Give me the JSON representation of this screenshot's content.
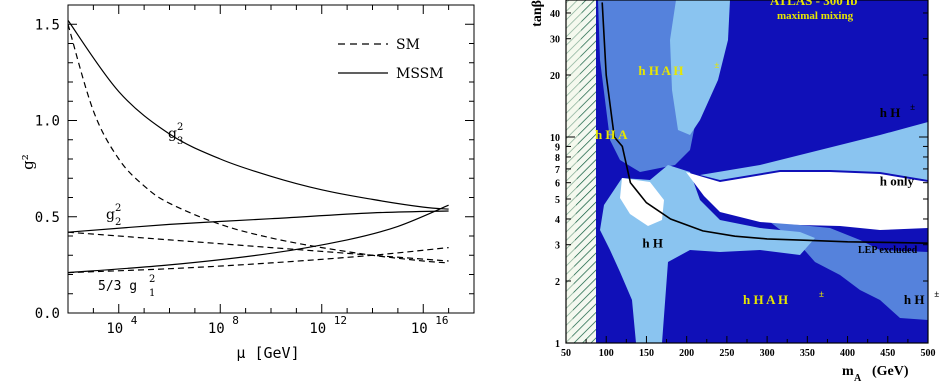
{
  "chart_data": [
    {
      "type": "line",
      "xlabel": "μ [GeV]",
      "ylabel": "g²",
      "x_scale": "log10",
      "xlim": [
        100,
        1e+18
      ],
      "ylim": [
        0.0,
        1.6
      ],
      "x_ticks": [
        "10",
        "10",
        "10",
        "10"
      ],
      "x_tick_exponents": [
        "4",
        "8",
        "12",
        "16"
      ],
      "y_ticks": [
        "0.0",
        "0.5",
        "1.0",
        "1.5"
      ],
      "legend": [
        {
          "label": "SM",
          "style": "dashed"
        },
        {
          "label": "MSSM",
          "style": "solid"
        }
      ],
      "curve_labels": {
        "g3": {
          "base": "g",
          "sup": "2",
          "sub": "3"
        },
        "g2": {
          "base": "g",
          "sup": "2",
          "sub": "2"
        },
        "g1": {
          "base": "5/3 g",
          "sup": "2",
          "sub": "1"
        }
      },
      "series": [
        {
          "name": "MSSM g3²",
          "style": "solid",
          "x": [
            2,
            4,
            6,
            8,
            10,
            12,
            14,
            16,
            17
          ],
          "y": [
            1.52,
            1.15,
            0.93,
            0.8,
            0.71,
            0.64,
            0.59,
            0.55,
            0.54
          ]
        },
        {
          "name": "SM g3²",
          "style": "dashed",
          "x": [
            2,
            3,
            4,
            5,
            6,
            8,
            10,
            12,
            14,
            16,
            17
          ],
          "y": [
            1.5,
            1.05,
            0.8,
            0.66,
            0.57,
            0.46,
            0.39,
            0.34,
            0.3,
            0.27,
            0.26
          ]
        },
        {
          "name": "MSSM g2²",
          "style": "solid",
          "x": [
            2,
            6,
            10,
            14,
            17
          ],
          "y": [
            0.42,
            0.46,
            0.49,
            0.52,
            0.53
          ]
        },
        {
          "name": "SM g2²",
          "style": "dashed",
          "x": [
            2,
            6,
            10,
            14,
            17
          ],
          "y": [
            0.42,
            0.38,
            0.34,
            0.3,
            0.27
          ]
        },
        {
          "name": "MSSM 5/3 g1²",
          "style": "solid",
          "x": [
            2,
            6,
            10,
            13,
            15,
            17
          ],
          "y": [
            0.21,
            0.25,
            0.31,
            0.38,
            0.45,
            0.56
          ]
        },
        {
          "name": "SM 5/3 g1²",
          "style": "dashed",
          "x": [
            2,
            6,
            10,
            14,
            17
          ],
          "y": [
            0.21,
            0.23,
            0.26,
            0.3,
            0.34
          ]
        }
      ]
    },
    {
      "type": "area",
      "xlabel": "m",
      "xlabel_sub": "A",
      "xlabel_unit": "(GeV)",
      "ylabel": "tanβ",
      "y_scale": "log",
      "xlim": [
        50,
        500
      ],
      "ylim": [
        1,
        45
      ],
      "x_ticks": [
        "50",
        "100",
        "150",
        "200",
        "250",
        "300",
        "350",
        "400",
        "450",
        "500"
      ],
      "y_ticks": [
        "1",
        "2",
        "3",
        "4",
        "5",
        "6",
        "7",
        "8",
        "9",
        "10",
        "20",
        "30",
        "40"
      ],
      "title": "ATLAS - 300 fb",
      "title_sup": "-1",
      "subtitle": "maximal mixing",
      "colors": {
        "dark": "#1010b8",
        "medium": "#5582dc",
        "light": "#8ac4f0",
        "hatch": "#0b5a3a",
        "highlight": "#e6e600"
      },
      "region_labels": [
        {
          "text": "h  H  A  H",
          "sup": "±",
          "color": "yellow",
          "at": [
            140,
            20
          ]
        },
        {
          "text": "h  H  A",
          "sup": "",
          "color": "yellow",
          "at": [
            86,
            9.8
          ]
        },
        {
          "text": "h  H",
          "sup": "±",
          "color": "black",
          "at": [
            440,
            12.5
          ]
        },
        {
          "text": "h only",
          "sup": "",
          "color": "black",
          "at": [
            440,
            5.8
          ]
        },
        {
          "text": "h  H",
          "sup": "",
          "color": "black",
          "at": [
            145,
            2.9
          ]
        },
        {
          "text": "h  H  A  H",
          "sup": "±",
          "color": "yellow",
          "at": [
            270,
            1.55
          ]
        },
        {
          "text": "h  H",
          "sup": "±",
          "color": "black",
          "at": [
            470,
            1.55
          ]
        }
      ],
      "annotation": "LEP excluded",
      "excluded_boundary": {
        "x": [
          95,
          100,
          110,
          120,
          130,
          150,
          180,
          220,
          260,
          300,
          350,
          400,
          450,
          500
        ],
        "y": [
          45,
          20,
          10,
          9,
          6,
          4.8,
          4,
          3.5,
          3.3,
          3.2,
          3.15,
          3.1,
          3.08,
          3.05
        ]
      }
    }
  ]
}
